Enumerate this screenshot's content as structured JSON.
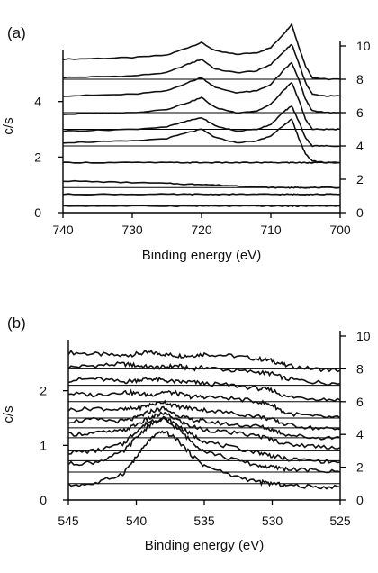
{
  "chart_data": [
    {
      "type": "line",
      "panel_label": "(a)",
      "xlabel": "Binding energy (eV)",
      "ylabel_left": "c/s",
      "ylabel_right": "",
      "xlim": [
        740,
        700
      ],
      "x_reversed": true,
      "ylim_left": [
        0,
        6
      ],
      "ylim_right": [
        0,
        10
      ],
      "x_ticks": [
        "740",
        "730",
        "720",
        "710",
        "700"
      ],
      "y_ticks_left": [
        "0",
        "2",
        "4"
      ],
      "y_ticks_right": [
        "0",
        "2",
        "4",
        "6",
        "8",
        "10"
      ],
      "series_style": "stacked spectra with flat baselines at right-axis ticks",
      "x": [
        740,
        735,
        730,
        725,
        722,
        720,
        718,
        715,
        712,
        710,
        708,
        707,
        706,
        705,
        704,
        702,
        700
      ],
      "series": [
        {
          "values": [
            9.2,
            9.25,
            9.3,
            9.45,
            9.9,
            10.2,
            9.7,
            9.5,
            9.6,
            9.9,
            10.8,
            11.3,
            10.0,
            8.8,
            8.1,
            8.0,
            8.0
          ]
        },
        {
          "values": [
            8.1,
            8.15,
            8.2,
            8.4,
            8.9,
            9.2,
            8.6,
            8.4,
            8.5,
            8.9,
            9.7,
            10.1,
            9.0,
            7.8,
            7.1,
            7.0,
            7.0
          ]
        },
        {
          "values": [
            7.0,
            7.05,
            7.1,
            7.3,
            7.8,
            8.1,
            7.5,
            7.2,
            7.3,
            7.7,
            8.6,
            9.0,
            8.0,
            6.8,
            6.1,
            6.0,
            6.0
          ]
        },
        {
          "values": [
            5.9,
            5.95,
            6.0,
            6.2,
            6.6,
            6.9,
            6.3,
            6.0,
            6.1,
            6.5,
            7.4,
            7.8,
            6.8,
            5.6,
            5.0,
            5.0,
            5.0
          ]
        },
        {
          "values": [
            4.9,
            4.95,
            5.0,
            5.15,
            5.5,
            5.7,
            5.2,
            4.9,
            5.0,
            5.3,
            6.1,
            6.4,
            5.5,
            4.5,
            4.0,
            4.0,
            4.0
          ]
        },
        {
          "values": [
            4.2,
            4.25,
            4.3,
            4.45,
            4.8,
            5.0,
            4.5,
            4.2,
            4.3,
            4.6,
            5.3,
            5.6,
            4.5,
            3.5,
            3.1,
            3.0,
            3.0
          ]
        },
        {
          "values": [
            3.0,
            3.0,
            3.0,
            3.0,
            3.0,
            3.0,
            3.0,
            3.0,
            3.0,
            3.0,
            3.0,
            3.0,
            3.0,
            3.0,
            3.0,
            3.0,
            3.0
          ]
        },
        {
          "values": [
            1.9,
            1.85,
            1.8,
            1.75,
            1.7,
            1.7,
            1.65,
            1.6,
            1.55,
            1.5,
            1.5,
            1.5,
            1.5,
            1.5,
            1.5,
            1.5,
            1.5
          ]
        },
        {
          "values": [
            1.1,
            1.1,
            1.1,
            1.1,
            1.1,
            1.1,
            1.1,
            1.1,
            1.1,
            1.1,
            1.1,
            1.1,
            1.1,
            1.1,
            1.1,
            1.1,
            1.1
          ]
        },
        {
          "values": [
            0.4,
            0.4,
            0.4,
            0.4,
            0.4,
            0.4,
            0.4,
            0.4,
            0.4,
            0.4,
            0.4,
            0.4,
            0.4,
            0.4,
            0.4,
            0.4,
            0.4
          ]
        }
      ],
      "baselines_right": [
        0.4,
        1.1,
        1.5,
        3.0,
        4.0,
        5.0,
        6.0,
        7.0,
        8.0
      ]
    },
    {
      "type": "line",
      "panel_label": "(b)",
      "xlabel": "Binding energy (eV)",
      "ylabel_left": "c/s",
      "ylabel_right": "",
      "xlim": [
        545,
        525
      ],
      "x_reversed": true,
      "ylim_left": [
        0,
        3
      ],
      "ylim_right": [
        0,
        10
      ],
      "x_ticks": [
        "545",
        "540",
        "535",
        "530",
        "525"
      ],
      "y_ticks_left": [
        "0",
        "1",
        "2"
      ],
      "y_ticks_right": [
        "0",
        "2",
        "4",
        "6",
        "8",
        "10"
      ],
      "series_style": "stacked noisy spectra with flat baselines at right-axis ticks",
      "x": [
        545,
        543,
        541,
        540,
        539,
        538,
        537,
        536,
        535,
        533,
        531,
        530,
        529,
        527,
        525
      ],
      "series": [
        {
          "values": [
            9.0,
            8.9,
            8.8,
            8.9,
            9.0,
            8.9,
            8.8,
            8.8,
            8.9,
            8.8,
            8.6,
            8.5,
            8.2,
            8.0,
            7.9
          ]
        },
        {
          "values": [
            8.1,
            8.2,
            8.3,
            8.2,
            8.1,
            8.1,
            8.2,
            8.0,
            8.1,
            7.9,
            7.8,
            7.7,
            7.4,
            7.2,
            7.1
          ]
        },
        {
          "values": [
            7.3,
            7.4,
            7.2,
            7.3,
            7.4,
            7.3,
            7.2,
            7.2,
            7.1,
            7.0,
            6.8,
            6.7,
            6.3,
            6.2,
            6.1
          ]
        },
        {
          "values": [
            6.5,
            6.4,
            6.6,
            6.5,
            6.4,
            6.6,
            6.5,
            6.3,
            6.3,
            6.2,
            6.0,
            5.8,
            5.3,
            5.1,
            5.0
          ]
        },
        {
          "values": [
            5.5,
            5.6,
            5.5,
            5.6,
            5.8,
            6.0,
            5.7,
            5.6,
            5.5,
            5.3,
            5.1,
            4.9,
            4.6,
            4.4,
            4.3
          ]
        },
        {
          "values": [
            4.8,
            4.9,
            4.8,
            5.0,
            5.4,
            5.6,
            5.2,
            4.9,
            4.8,
            4.6,
            4.5,
            4.3,
            4.0,
            3.8,
            3.8
          ]
        },
        {
          "values": [
            4.0,
            4.1,
            4.2,
            4.6,
            5.0,
            5.3,
            4.9,
            4.5,
            4.3,
            4.1,
            3.9,
            3.7,
            3.4,
            3.3,
            3.2
          ]
        },
        {
          "values": [
            2.9,
            3.0,
            3.4,
            4.2,
            4.8,
            5.0,
            4.6,
            4.0,
            3.6,
            3.2,
            2.9,
            2.7,
            2.5,
            2.4,
            2.3
          ]
        },
        {
          "values": [
            2.2,
            2.3,
            2.9,
            3.8,
            4.6,
            4.9,
            4.4,
            3.6,
            3.0,
            2.5,
            2.1,
            2.0,
            1.9,
            1.8,
            1.7
          ]
        },
        {
          "values": [
            0.9,
            1.0,
            1.6,
            2.6,
            3.7,
            4.2,
            3.7,
            2.8,
            2.1,
            1.5,
            1.1,
            1.0,
            0.9,
            0.8,
            0.8
          ]
        }
      ],
      "baselines_right": [
        1.0,
        1.7,
        2.4,
        3.0,
        3.8,
        4.4,
        5.0,
        6.0,
        7.0,
        8.0
      ]
    }
  ]
}
